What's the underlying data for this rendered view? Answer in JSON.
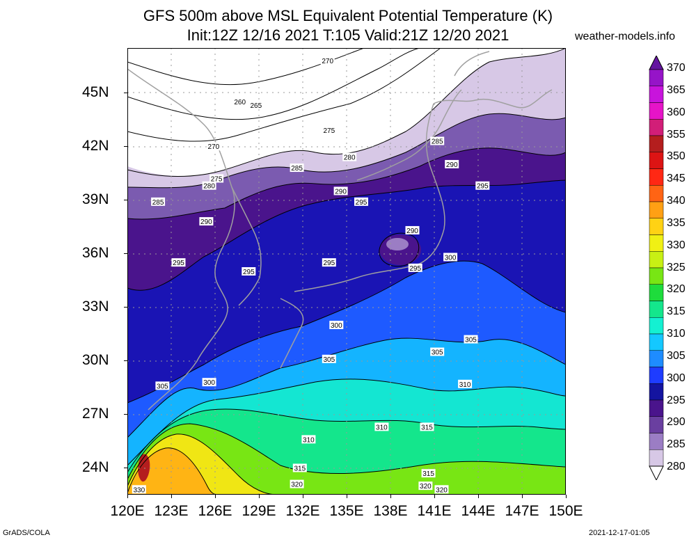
{
  "title_line1": "GFS 500m above MSL Equivalent Potential Temperature (K)",
  "title_line2": "Init:12Z 12/16 2021 T:105 Valid:21Z 12/20 2021",
  "site": "weather-models.info",
  "footer_left": "GrADS/COLA",
  "footer_right": "2021-12-17-01:05",
  "lat_labels": [
    "45N",
    "42N",
    "39N",
    "36N",
    "33N",
    "30N",
    "27N",
    "24N"
  ],
  "lon_labels": [
    "120E",
    "123E",
    "126E",
    "129E",
    "132E",
    "135E",
    "138E",
    "141E",
    "144E",
    "147E",
    "150E"
  ],
  "colorbar": {
    "levels": [
      "280",
      "285",
      "290",
      "295",
      "300",
      "305",
      "310",
      "315",
      "320",
      "325",
      "330",
      "335",
      "340",
      "345",
      "350",
      "355",
      "360",
      "365",
      "370"
    ],
    "colors": [
      "#ffffff",
      "#d7c8e6",
      "#9b7dc4",
      "#6a3fa0",
      "#4a148c",
      "#1414a0",
      "#1e3cff",
      "#1e8cff",
      "#14c8ff",
      "#14f0d2",
      "#14e68c",
      "#1edc3c",
      "#78e614",
      "#c8f014",
      "#f0f014",
      "#ffd214",
      "#ffa014",
      "#ff6414",
      "#ff2814",
      "#dc1414",
      "#b41e1e",
      "#d21e78",
      "#e614c8",
      "#c814dc",
      "#9614c8",
      "#6414a0"
    ]
  },
  "map": {
    "bands": [
      {
        "level": "280",
        "color": "#d7c8e6"
      },
      {
        "level": "285",
        "color": "#7b5bb0"
      },
      {
        "level": "290",
        "color": "#4a148c"
      },
      {
        "level": "295",
        "color": "#1a14b4"
      },
      {
        "level": "300",
        "color": "#1e5aff"
      },
      {
        "level": "305",
        "color": "#14b4ff"
      },
      {
        "level": "310",
        "color": "#14e6d2"
      },
      {
        "level": "315",
        "color": "#14e68c"
      },
      {
        "level": "320",
        "color": "#78e614"
      },
      {
        "level": "325",
        "color": "#f0e614"
      },
      {
        "level": "330",
        "color": "#ffb414"
      }
    ],
    "contour_labels": [
      {
        "text": "270",
        "lon": 133.7,
        "lat": 46.8
      },
      {
        "text": "260",
        "lon": 127.7,
        "lat": 44.5
      },
      {
        "text": "265",
        "lon": 128.8,
        "lat": 44.3
      },
      {
        "text": "275",
        "lon": 133.8,
        "lat": 42.9
      },
      {
        "text": "270",
        "lon": 125.9,
        "lat": 42.0
      },
      {
        "text": "280",
        "lon": 135.2,
        "lat": 41.4
      },
      {
        "text": "285",
        "lon": 131.6,
        "lat": 40.8
      },
      {
        "text": "275",
        "lon": 126.1,
        "lat": 40.2
      },
      {
        "text": "280",
        "lon": 125.6,
        "lat": 39.8
      },
      {
        "text": "285",
        "lon": 122.1,
        "lat": 38.9
      },
      {
        "text": "290",
        "lon": 134.6,
        "lat": 39.5
      },
      {
        "text": "295",
        "lon": 136.0,
        "lat": 38.9
      },
      {
        "text": "285",
        "lon": 141.2,
        "lat": 42.3
      },
      {
        "text": "290",
        "lon": 142.2,
        "lat": 41.0
      },
      {
        "text": "295",
        "lon": 144.3,
        "lat": 39.8
      },
      {
        "text": "290",
        "lon": 125.4,
        "lat": 37.8
      },
      {
        "text": "290",
        "lon": 139.5,
        "lat": 37.3
      },
      {
        "text": "295",
        "lon": 123.5,
        "lat": 35.5
      },
      {
        "text": "295",
        "lon": 128.3,
        "lat": 35.0
      },
      {
        "text": "295",
        "lon": 133.8,
        "lat": 35.5
      },
      {
        "text": "295",
        "lon": 139.7,
        "lat": 35.2
      },
      {
        "text": "300",
        "lon": 142.1,
        "lat": 35.8
      },
      {
        "text": "300",
        "lon": 134.3,
        "lat": 32.0
      },
      {
        "text": "305",
        "lon": 143.5,
        "lat": 31.2
      },
      {
        "text": "305",
        "lon": 141.2,
        "lat": 30.5
      },
      {
        "text": "305",
        "lon": 133.8,
        "lat": 30.1
      },
      {
        "text": "300",
        "lon": 125.6,
        "lat": 28.8
      },
      {
        "text": "305",
        "lon": 122.4,
        "lat": 28.6
      },
      {
        "text": "310",
        "lon": 143.1,
        "lat": 28.7
      },
      {
        "text": "310",
        "lon": 137.4,
        "lat": 26.3
      },
      {
        "text": "315",
        "lon": 140.5,
        "lat": 26.3
      },
      {
        "text": "310",
        "lon": 132.4,
        "lat": 25.6
      },
      {
        "text": "315",
        "lon": 131.8,
        "lat": 24.0
      },
      {
        "text": "315",
        "lon": 140.6,
        "lat": 23.7
      },
      {
        "text": "320",
        "lon": 131.6,
        "lat": 23.1
      },
      {
        "text": "320",
        "lon": 140.4,
        "lat": 23.0
      },
      {
        "text": "320",
        "lon": 141.5,
        "lat": 22.8
      },
      {
        "text": "330",
        "lon": 120.8,
        "lat": 22.8
      }
    ]
  }
}
